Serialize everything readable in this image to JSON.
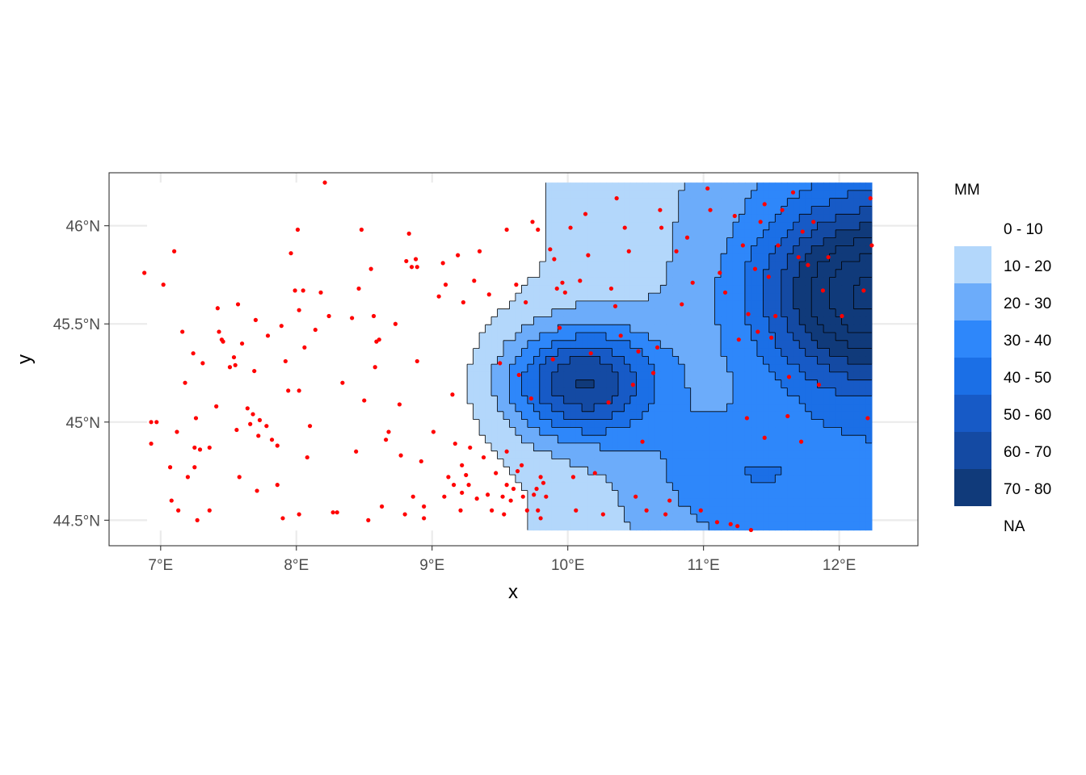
{
  "chart_data": {
    "type": "contour-map",
    "xlabel": "x",
    "ylabel": "y",
    "xlim": [
      6.62,
      12.58
    ],
    "ylim": [
      44.37,
      46.27
    ],
    "grid": true,
    "legend_position": "right",
    "x_ticks": [
      {
        "value": 7,
        "label": "7°E"
      },
      {
        "value": 8,
        "label": "8°E"
      },
      {
        "value": 9,
        "label": "9°E"
      },
      {
        "value": 10,
        "label": "10°E"
      },
      {
        "value": 11,
        "label": "11°E"
      },
      {
        "value": 12,
        "label": "12°E"
      }
    ],
    "y_ticks": [
      {
        "value": 44.5,
        "label": "44.5°N"
      },
      {
        "value": 45.0,
        "label": "45°N"
      },
      {
        "value": 45.5,
        "label": "45.5°N"
      },
      {
        "value": 46.0,
        "label": "46°N"
      }
    ],
    "legend": {
      "title": "MM",
      "bins": [
        {
          "label": "0 - 10",
          "color": "#ffffff"
        },
        {
          "label": "10 - 20",
          "color": "#b3d7fb"
        },
        {
          "label": "20 - 30",
          "color": "#6cacfa"
        },
        {
          "label": "30 - 40",
          "color": "#2e87fa"
        },
        {
          "label": "40 - 50",
          "color": "#1b6fe6"
        },
        {
          "label": "50 - 60",
          "color": "#175ac6"
        },
        {
          "label": "60 - 70",
          "color": "#144aa3"
        },
        {
          "label": "70 - 80",
          "color": "#103a7a"
        },
        {
          "label": "NA",
          "color": ""
        }
      ]
    },
    "hotspots": [
      {
        "lon": 10.1,
        "lat": 45.2,
        "peak": 58,
        "sx": 0.55,
        "sy": 0.28
      },
      {
        "lon": 12.2,
        "lat": 45.65,
        "peak": 70,
        "sx": 0.75,
        "sy": 0.45
      },
      {
        "lon": 11.2,
        "lat": 44.75,
        "peak": 14,
        "sx": 0.7,
        "sy": 0.3
      }
    ],
    "points_color": "#ff0000",
    "points": [
      [
        6.88,
        45.76
      ],
      [
        7.02,
        45.7
      ],
      [
        7.1,
        45.87
      ],
      [
        7.16,
        45.46
      ],
      [
        7.18,
        45.2
      ],
      [
        6.93,
        45.0
      ],
      [
        6.97,
        45.0
      ],
      [
        6.93,
        44.89
      ],
      [
        7.07,
        44.77
      ],
      [
        7.08,
        44.6
      ],
      [
        7.12,
        44.95
      ],
      [
        7.2,
        44.72
      ],
      [
        7.13,
        44.55
      ],
      [
        7.24,
        45.35
      ],
      [
        7.26,
        45.02
      ],
      [
        7.25,
        44.87
      ],
      [
        7.25,
        44.77
      ],
      [
        7.27,
        44.5
      ],
      [
        7.29,
        44.86
      ],
      [
        7.31,
        45.3
      ],
      [
        7.36,
        44.87
      ],
      [
        7.36,
        44.55
      ],
      [
        7.41,
        45.08
      ],
      [
        7.42,
        45.58
      ],
      [
        7.43,
        45.46
      ],
      [
        7.45,
        45.42
      ],
      [
        7.46,
        45.41
      ],
      [
        7.51,
        45.28
      ],
      [
        7.54,
        45.33
      ],
      [
        7.55,
        45.29
      ],
      [
        7.56,
        44.96
      ],
      [
        7.57,
        45.6
      ],
      [
        7.58,
        44.72
      ],
      [
        7.6,
        45.4
      ],
      [
        7.64,
        45.07
      ],
      [
        7.66,
        44.99
      ],
      [
        7.68,
        45.04
      ],
      [
        7.69,
        45.26
      ],
      [
        7.7,
        45.52
      ],
      [
        7.71,
        44.65
      ],
      [
        7.72,
        44.93
      ],
      [
        7.73,
        45.01
      ],
      [
        7.78,
        44.98
      ],
      [
        7.79,
        45.44
      ],
      [
        7.82,
        44.91
      ],
      [
        7.86,
        44.88
      ],
      [
        7.86,
        44.68
      ],
      [
        7.89,
        45.49
      ],
      [
        7.9,
        44.51
      ],
      [
        7.92,
        45.31
      ],
      [
        7.94,
        45.16
      ],
      [
        7.96,
        45.86
      ],
      [
        7.99,
        45.67
      ],
      [
        8.01,
        45.98
      ],
      [
        8.02,
        45.57
      ],
      [
        8.02,
        45.16
      ],
      [
        8.02,
        44.53
      ],
      [
        8.05,
        45.67
      ],
      [
        8.06,
        45.38
      ],
      [
        8.08,
        44.82
      ],
      [
        8.1,
        44.98
      ],
      [
        8.14,
        45.47
      ],
      [
        8.18,
        45.66
      ],
      [
        8.21,
        46.22
      ],
      [
        8.24,
        45.54
      ],
      [
        8.27,
        44.54
      ],
      [
        8.3,
        44.54
      ],
      [
        8.34,
        45.2
      ],
      [
        8.41,
        45.53
      ],
      [
        8.44,
        44.85
      ],
      [
        8.46,
        45.68
      ],
      [
        8.48,
        45.98
      ],
      [
        8.5,
        45.11
      ],
      [
        8.53,
        44.5
      ],
      [
        8.55,
        45.78
      ],
      [
        8.57,
        45.54
      ],
      [
        8.58,
        45.28
      ],
      [
        8.59,
        45.41
      ],
      [
        8.61,
        45.42
      ],
      [
        8.63,
        44.57
      ],
      [
        8.66,
        44.91
      ],
      [
        8.68,
        44.95
      ],
      [
        8.73,
        45.5
      ],
      [
        8.76,
        45.09
      ],
      [
        8.77,
        44.83
      ],
      [
        8.8,
        44.53
      ],
      [
        8.81,
        45.82
      ],
      [
        8.83,
        45.96
      ],
      [
        8.85,
        45.79
      ],
      [
        8.86,
        44.62
      ],
      [
        8.88,
        45.83
      ],
      [
        8.89,
        45.31
      ],
      [
        8.89,
        45.79
      ],
      [
        8.92,
        44.8
      ],
      [
        8.94,
        44.51
      ],
      [
        8.94,
        44.57
      ],
      [
        9.01,
        44.95
      ],
      [
        9.05,
        45.64
      ],
      [
        9.08,
        45.81
      ],
      [
        9.09,
        44.62
      ],
      [
        9.1,
        45.7
      ],
      [
        9.12,
        44.72
      ],
      [
        9.15,
        45.14
      ],
      [
        9.16,
        44.68
      ],
      [
        9.17,
        44.89
      ],
      [
        9.19,
        45.85
      ],
      [
        9.21,
        44.55
      ],
      [
        9.22,
        44.78
      ],
      [
        9.22,
        44.64
      ],
      [
        9.23,
        45.61
      ],
      [
        9.25,
        44.73
      ],
      [
        9.27,
        44.68
      ],
      [
        9.28,
        44.87
      ],
      [
        9.31,
        45.72
      ],
      [
        9.33,
        44.61
      ],
      [
        9.35,
        45.87
      ],
      [
        9.38,
        44.82
      ],
      [
        9.41,
        44.63
      ],
      [
        9.44,
        44.55
      ],
      [
        9.47,
        44.74
      ],
      [
        9.5,
        45.3
      ],
      [
        9.52,
        44.62
      ],
      [
        9.53,
        44.53
      ],
      [
        9.55,
        44.68
      ],
      [
        9.55,
        44.85
      ],
      [
        9.58,
        44.6
      ],
      [
        9.6,
        44.66
      ],
      [
        9.62,
        45.7
      ],
      [
        9.63,
        44.75
      ],
      [
        9.64,
        45.24
      ],
      [
        9.66,
        44.78
      ],
      [
        9.67,
        44.62
      ],
      [
        9.69,
        45.61
      ],
      [
        9.7,
        44.55
      ],
      [
        9.73,
        45.12
      ],
      [
        9.75,
        44.63
      ],
      [
        9.77,
        44.66
      ],
      [
        9.78,
        44.55
      ],
      [
        9.8,
        44.72
      ],
      [
        9.8,
        44.51
      ],
      [
        9.82,
        44.69
      ],
      [
        9.84,
        44.62
      ],
      [
        9.87,
        45.88
      ],
      [
        9.89,
        45.32
      ],
      [
        9.9,
        45.83
      ],
      [
        9.92,
        45.68
      ],
      [
        9.94,
        45.48
      ],
      [
        9.96,
        45.71
      ],
      [
        9.98,
        45.66
      ],
      [
        10.02,
        45.99
      ],
      [
        10.04,
        44.72
      ],
      [
        10.06,
        44.55
      ],
      [
        10.09,
        45.72
      ],
      [
        10.13,
        46.06
      ],
      [
        10.15,
        45.85
      ],
      [
        10.17,
        45.35
      ],
      [
        10.2,
        44.74
      ],
      [
        10.26,
        44.53
      ],
      [
        10.3,
        45.1
      ],
      [
        10.32,
        45.68
      ],
      [
        10.35,
        45.59
      ],
      [
        10.36,
        46.14
      ],
      [
        10.39,
        45.44
      ],
      [
        10.42,
        45.99
      ],
      [
        10.45,
        45.87
      ],
      [
        10.48,
        45.19
      ],
      [
        10.5,
        44.62
      ],
      [
        10.52,
        45.36
      ],
      [
        10.55,
        44.9
      ],
      [
        10.58,
        44.55
      ],
      [
        10.63,
        45.25
      ],
      [
        10.66,
        45.38
      ],
      [
        10.68,
        46.08
      ],
      [
        10.69,
        45.99
      ],
      [
        10.72,
        44.53
      ],
      [
        10.75,
        44.6
      ],
      [
        10.8,
        45.87
      ],
      [
        10.84,
        45.6
      ],
      [
        10.88,
        45.94
      ],
      [
        10.92,
        45.71
      ],
      [
        10.98,
        44.55
      ],
      [
        11.03,
        46.19
      ],
      [
        11.05,
        46.08
      ],
      [
        11.1,
        44.49
      ],
      [
        11.12,
        45.76
      ],
      [
        11.16,
        45.66
      ],
      [
        11.2,
        44.48
      ],
      [
        11.23,
        46.05
      ],
      [
        11.25,
        44.47
      ],
      [
        11.29,
        45.9
      ],
      [
        11.33,
        45.55
      ],
      [
        11.35,
        44.45
      ],
      [
        11.38,
        45.78
      ],
      [
        11.42,
        46.02
      ],
      [
        11.45,
        46.11
      ],
      [
        11.48,
        45.74
      ],
      [
        11.5,
        45.43
      ],
      [
        11.53,
        45.54
      ],
      [
        11.55,
        45.9
      ],
      [
        11.58,
        46.08
      ],
      [
        11.63,
        45.23
      ],
      [
        11.66,
        46.17
      ],
      [
        11.7,
        45.84
      ],
      [
        11.73,
        45.97
      ],
      [
        11.77,
        45.8
      ],
      [
        11.81,
        46.02
      ],
      [
        11.85,
        45.19
      ],
      [
        11.88,
        45.67
      ],
      [
        11.92,
        45.84
      ],
      [
        12.02,
        45.54
      ],
      [
        12.18,
        45.67
      ],
      [
        12.21,
        45.02
      ],
      [
        12.24,
        45.9
      ],
      [
        12.23,
        46.14
      ],
      [
        11.72,
        44.9
      ],
      [
        11.45,
        44.92
      ],
      [
        11.32,
        45.02
      ],
      [
        11.4,
        45.46
      ],
      [
        11.26,
        45.42
      ],
      [
        11.62,
        45.03
      ],
      [
        9.42,
        45.65
      ],
      [
        9.55,
        45.98
      ],
      [
        9.74,
        46.02
      ],
      [
        9.78,
        45.98
      ]
    ]
  }
}
